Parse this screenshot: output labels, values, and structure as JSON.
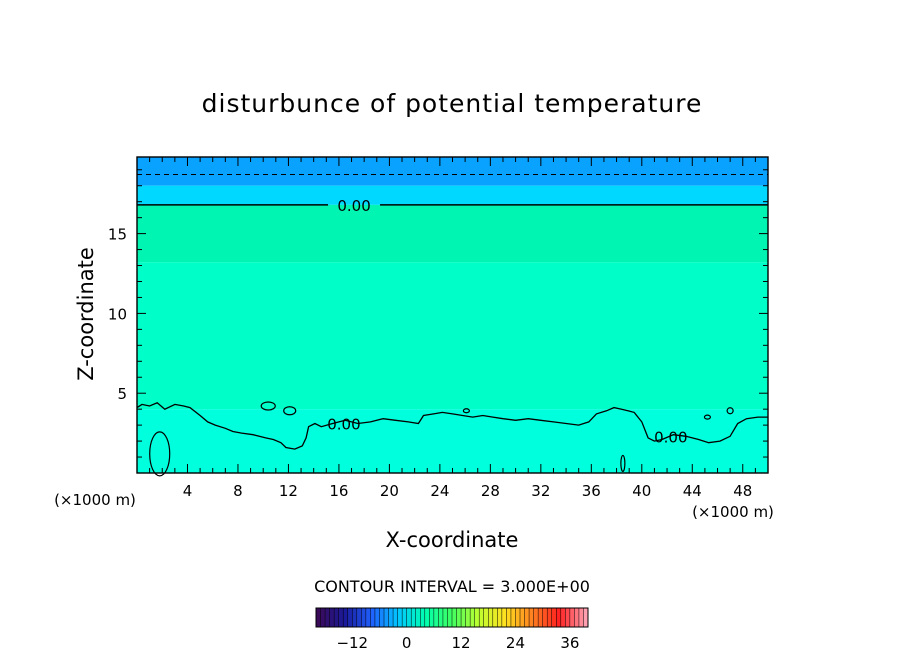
{
  "chart_data": {
    "type": "heatmap",
    "title": "disturbunce of potential temperature",
    "xlabel": "X-coordinate",
    "ylabel": "Z-coordinate",
    "x_unit": "(×1000 m)",
    "y_unit": "(×1000 m)",
    "xlim": [
      0,
      50
    ],
    "ylim": [
      0,
      19.8
    ],
    "xticks": [
      4,
      8,
      12,
      16,
      20,
      24,
      28,
      32,
      36,
      40,
      44,
      48
    ],
    "yticks": [
      5,
      10,
      15
    ],
    "contour_interval_text": "CONTOUR INTERVAL = 3.000E+00",
    "contour_levels": [
      -3,
      0
    ],
    "contour_labels": [
      {
        "text": "0.00",
        "x": 17.2,
        "z": 16.8
      },
      {
        "text": "0.00",
        "x": 16.4,
        "z": 3.1
      },
      {
        "text": "0.00",
        "x": 42.3,
        "z": 2.3
      }
    ],
    "zero_contour_upper_z": 16.8,
    "negative_contour_z": 18.7,
    "zero_contour_lower": {
      "x": [
        0,
        0.4,
        1,
        1.6,
        2.2,
        3,
        3.7,
        4.2,
        5,
        5.6,
        6.2,
        7,
        7.6,
        8.3,
        9.2,
        10.2,
        10.8,
        11.4,
        11.8,
        12.5,
        13.1,
        13.4,
        13.6,
        14.1,
        14.6,
        15.5,
        16.5,
        17.5,
        18.5,
        19.5,
        20.5,
        21.5,
        22.3,
        22.7,
        23.5,
        24.2,
        25,
        25.8,
        26.6,
        27.4,
        28.2,
        29,
        30,
        31,
        32,
        33,
        34,
        35,
        35.8,
        36.4,
        37.2,
        37.8,
        38.4,
        38.9,
        39.4,
        40,
        40.5,
        41,
        41.6,
        42.5,
        43.5,
        44.5,
        45.3,
        46.2,
        47,
        47.6,
        48.3,
        49.2,
        50
      ],
      "z": [
        4.1,
        4.3,
        4.2,
        4.4,
        4.0,
        4.3,
        4.2,
        4.1,
        3.6,
        3.2,
        3.0,
        2.8,
        2.6,
        2.5,
        2.4,
        2.2,
        2.1,
        1.9,
        1.6,
        1.5,
        1.7,
        2.2,
        2.9,
        3.1,
        2.9,
        3.1,
        3.3,
        3.1,
        3.2,
        3.4,
        3.3,
        3.2,
        3.1,
        3.6,
        3.7,
        3.8,
        3.7,
        3.6,
        3.5,
        3.6,
        3.5,
        3.4,
        3.3,
        3.4,
        3.3,
        3.2,
        3.1,
        3.0,
        3.2,
        3.7,
        3.9,
        4.1,
        4.0,
        3.9,
        3.8,
        3.2,
        2.2,
        2.0,
        2.1,
        2.4,
        2.3,
        2.1,
        1.9,
        2.0,
        2.3,
        3.1,
        3.4,
        3.5,
        3.5
      ]
    },
    "field_bands": [
      {
        "z0": 18.0,
        "z1": 19.8,
        "color": "#0aa2ff"
      },
      {
        "z0": 16.8,
        "z1": 18.0,
        "color": "#00d8ff"
      },
      {
        "z0": 13.2,
        "z1": 16.8,
        "color": "#00f4b2"
      },
      {
        "z0": 4.0,
        "z1": 13.2,
        "color": "#00ffc8"
      },
      {
        "z0": 0,
        "z1": 4.0,
        "color": "#00ffdc"
      }
    ],
    "colorbar": {
      "ticks": [
        -12,
        0,
        12,
        24,
        36
      ],
      "min": -20,
      "max": 40,
      "stops": [
        "#3a0a5a",
        "#1a1a9a",
        "#2060ff",
        "#00c8ff",
        "#00ffb0",
        "#40ff60",
        "#c0ff30",
        "#ffe020",
        "#ff8020",
        "#ff2020",
        "#ffa0b0"
      ]
    }
  }
}
